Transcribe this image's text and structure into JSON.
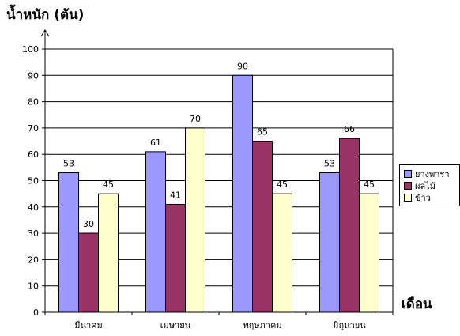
{
  "chart_data": {
    "type": "bar",
    "ylabel": "น้ำหนัก (ตัน)",
    "xlabel": "เดือน",
    "categories": [
      "มีนาคม",
      "เมษายน",
      "พฤษภาคม",
      "มิถุนายน"
    ],
    "series": [
      {
        "name": "ยางพารา",
        "values": [
          53,
          61,
          90,
          53
        ],
        "color": "#9999FF"
      },
      {
        "name": "ผลไม้",
        "values": [
          30,
          41,
          65,
          66
        ],
        "color": "#993366"
      },
      {
        "name": "ข้าว",
        "values": [
          45,
          70,
          45,
          45
        ],
        "color": "#FFFFCC"
      }
    ],
    "ylim": [
      0,
      100
    ],
    "yticks": [
      0,
      10,
      20,
      30,
      40,
      50,
      60,
      70,
      80,
      90,
      100
    ],
    "grid": true,
    "legend_position": "right"
  }
}
